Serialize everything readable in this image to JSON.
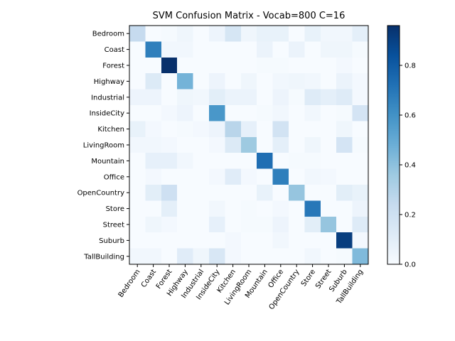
{
  "chart_data": {
    "type": "heatmap",
    "title": "SVM Confusion Matrix - Vocab=800 C=16",
    "xlabel": "",
    "ylabel": "",
    "categories": [
      "Bedroom",
      "Coast",
      "Forest",
      "Highway",
      "Industrial",
      "InsideCity",
      "Kitchen",
      "LivingRoom",
      "Mountain",
      "Office",
      "OpenCountry",
      "Store",
      "Street",
      "Suburb",
      "TallBuilding"
    ],
    "matrix": [
      [
        0.24,
        0.0,
        0.01,
        0.04,
        0.0,
        0.05,
        0.16,
        0.04,
        0.07,
        0.07,
        0.0,
        0.07,
        0.03,
        0.03,
        0.09
      ],
      [
        0.0,
        0.67,
        0.03,
        0.03,
        0.0,
        0.0,
        0.0,
        0.0,
        0.06,
        0.0,
        0.06,
        0.0,
        0.04,
        0.04,
        0.01
      ],
      [
        0.0,
        0.0,
        0.96,
        0.0,
        0.0,
        0.0,
        0.0,
        0.0,
        0.01,
        0.01,
        0.0,
        0.0,
        0.0,
        0.02,
        0.0
      ],
      [
        0.0,
        0.13,
        0.0,
        0.46,
        0.0,
        0.05,
        0.0,
        0.04,
        0.0,
        0.03,
        0.04,
        0.03,
        0.0,
        0.06,
        0.02
      ],
      [
        0.05,
        0.05,
        0.0,
        0.04,
        0.03,
        0.1,
        0.06,
        0.06,
        0.0,
        0.05,
        0.01,
        0.12,
        0.09,
        0.12,
        0.02
      ],
      [
        0.0,
        0.0,
        0.02,
        0.05,
        0.0,
        0.58,
        0.0,
        0.0,
        0.01,
        0.03,
        0.0,
        0.03,
        0.0,
        0.01,
        0.17
      ],
      [
        0.07,
        0.02,
        0.0,
        0.01,
        0.02,
        0.05,
        0.28,
        0.08,
        0.0,
        0.18,
        0.0,
        0.0,
        0.0,
        0.04,
        0.0
      ],
      [
        0.03,
        0.03,
        0.02,
        0.0,
        0.0,
        0.02,
        0.13,
        0.36,
        0.0,
        0.09,
        0.0,
        0.04,
        0.0,
        0.17,
        0.01
      ],
      [
        0.0,
        0.08,
        0.08,
        0.03,
        0.0,
        0.0,
        0.0,
        0.0,
        0.73,
        0.0,
        0.01,
        0.01,
        0.0,
        0.0,
        0.0
      ],
      [
        0.0,
        0.02,
        0.0,
        0.0,
        0.0,
        0.02,
        0.11,
        0.02,
        0.0,
        0.67,
        0.0,
        0.03,
        0.02,
        0.0,
        0.0
      ],
      [
        0.0,
        0.1,
        0.2,
        0.0,
        0.0,
        0.0,
        0.0,
        0.0,
        0.07,
        0.0,
        0.38,
        0.0,
        0.0,
        0.1,
        0.07
      ],
      [
        0.0,
        0.0,
        0.09,
        0.0,
        0.0,
        0.03,
        0.0,
        0.01,
        0.0,
        0.02,
        0.0,
        0.7,
        0.0,
        0.0,
        0.05
      ],
      [
        0.0,
        0.04,
        0.02,
        0.0,
        0.0,
        0.08,
        0.0,
        0.01,
        0.01,
        0.05,
        0.0,
        0.1,
        0.38,
        0.0,
        0.12
      ],
      [
        0.0,
        0.0,
        0.0,
        0.0,
        0.0,
        0.0,
        0.02,
        0.0,
        0.0,
        0.03,
        0.0,
        0.0,
        0.0,
        0.91,
        0.02
      ],
      [
        0.03,
        0.03,
        0.0,
        0.11,
        0.04,
        0.15,
        0.02,
        0.0,
        0.0,
        0.0,
        0.0,
        0.03,
        0.0,
        0.01,
        0.43
      ]
    ],
    "colormap": "Blues",
    "colorbar": {
      "range": [
        0.0,
        0.96
      ],
      "ticks": [
        0.0,
        0.2,
        0.4,
        0.6,
        0.8
      ],
      "tick_labels": [
        "0.0",
        "0.2",
        "0.4",
        "0.6",
        "0.8"
      ]
    },
    "colors": {
      "low": "#f7fbff",
      "high": "#08306b"
    },
    "grid": false,
    "legend": "colorbar-right"
  }
}
